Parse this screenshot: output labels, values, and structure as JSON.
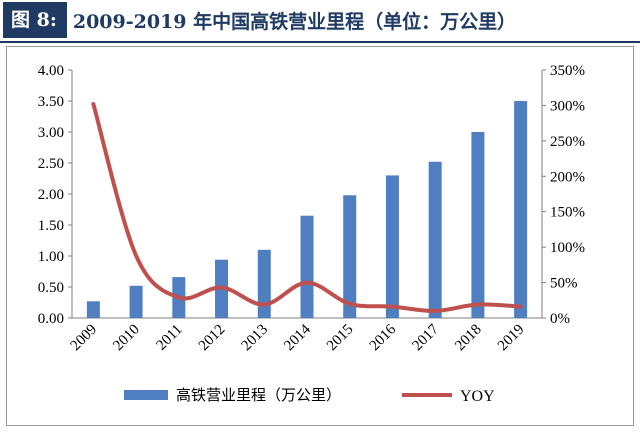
{
  "figure": {
    "label": "图 8:",
    "title": "2009-2019 年中国高铁营业里程（单位：万公里）"
  },
  "chart_data": {
    "type": "bar",
    "categories": [
      "2009",
      "2010",
      "2011",
      "2012",
      "2013",
      "2014",
      "2015",
      "2016",
      "2017",
      "2018",
      "2019"
    ],
    "series": [
      {
        "name": "高铁营业里程（万公里）",
        "type": "bar",
        "axis": "left",
        "color": "#4f7fc1",
        "values": [
          0.27,
          0.52,
          0.66,
          0.94,
          1.1,
          1.65,
          1.98,
          2.3,
          2.52,
          3.0,
          3.5
        ]
      },
      {
        "name": "YOY",
        "type": "line",
        "axis": "right",
        "color": "#c0504d",
        "values": [
          3.02,
          0.88,
          0.29,
          0.43,
          0.19,
          0.5,
          0.2,
          0.16,
          0.1,
          0.19,
          0.16
        ]
      }
    ],
    "y_left": {
      "min": 0,
      "max": 4,
      "ticks": [
        "0.00",
        "0.50",
        "1.00",
        "1.50",
        "2.00",
        "2.50",
        "3.00",
        "3.50",
        "4.00"
      ]
    },
    "y_right": {
      "min": 0,
      "max": 3.5,
      "ticks": [
        "0%",
        "50%",
        "100%",
        "150%",
        "200%",
        "250%",
        "300%",
        "350%"
      ]
    },
    "grid": false,
    "legend_position": "bottom"
  }
}
